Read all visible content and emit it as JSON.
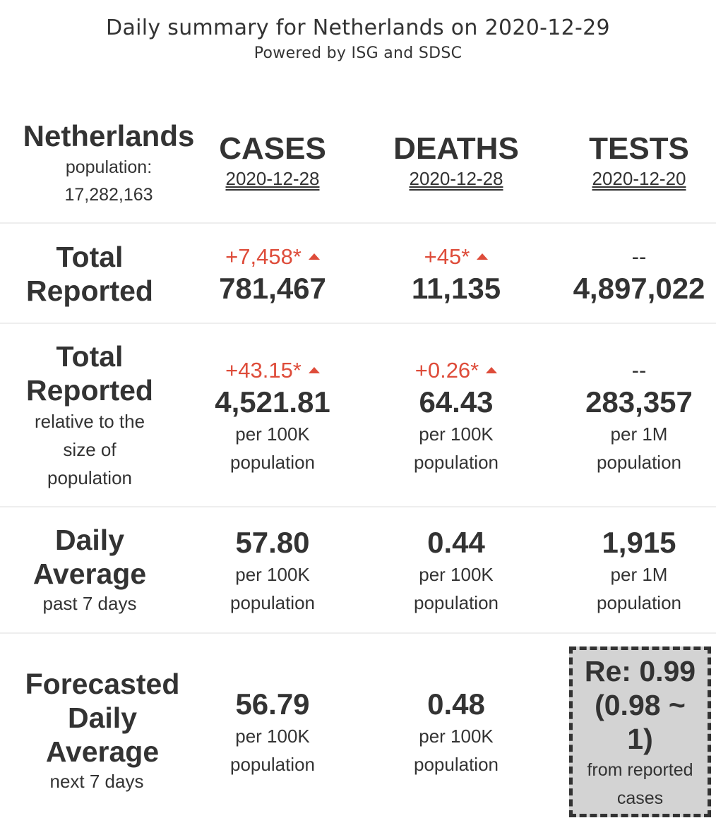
{
  "header": {
    "title": "Daily summary for Netherlands on 2020-12-29",
    "subtitle": "Powered by ISG and SDSC"
  },
  "country": {
    "name": "Netherlands",
    "population_label": "population:",
    "population_value": "17,282,163"
  },
  "columns": {
    "cases": {
      "label": "CASES",
      "date": "2020-12-28"
    },
    "deaths": {
      "label": "DEATHS",
      "date": "2020-12-28"
    },
    "tests": {
      "label": "TESTS",
      "date": "2020-12-20"
    }
  },
  "rows": {
    "total": {
      "label_line1": "Total",
      "label_line2": "Reported",
      "cases": {
        "delta": "+7,458*",
        "value": "781,467"
      },
      "deaths": {
        "delta": "+45*",
        "value": "11,135"
      },
      "tests": {
        "delta": "--",
        "value": "4,897,022"
      }
    },
    "relative": {
      "label_line1": "Total",
      "label_line2": "Reported",
      "sub_line1": "relative to the",
      "sub_line2": "size of",
      "sub_line3": "population",
      "cases": {
        "delta": "+43.15*",
        "value": "4,521.81",
        "unit1": "per 100K",
        "unit2": "population"
      },
      "deaths": {
        "delta": "+0.26*",
        "value": "64.43",
        "unit1": "per 100K",
        "unit2": "population"
      },
      "tests": {
        "delta": "--",
        "value": "283,357",
        "unit1": "per 1M",
        "unit2": "population"
      }
    },
    "daily": {
      "label_line1": "Daily",
      "label_line2": "Average",
      "sub": "past 7 days",
      "cases": {
        "value": "57.80",
        "unit1": "per 100K",
        "unit2": "population"
      },
      "deaths": {
        "value": "0.44",
        "unit1": "per 100K",
        "unit2": "population"
      },
      "tests": {
        "value": "1,915",
        "unit1": "per 1M",
        "unit2": "population"
      }
    },
    "forecast": {
      "label_line1": "Forecasted",
      "label_line2": "Daily",
      "label_line3": "Average",
      "sub": "next 7 days",
      "cases": {
        "value": "56.79",
        "unit1": "per 100K",
        "unit2": "population"
      },
      "deaths": {
        "value": "0.48",
        "unit1": "per 100K",
        "unit2": "population"
      },
      "re": {
        "line1": "Re: 0.99",
        "line2": "(0.98 ~",
        "line3": "1)",
        "sub1": "from reported",
        "sub2": "cases"
      }
    }
  },
  "colors": {
    "increase": "#de4c3a",
    "text": "#333333",
    "divider": "#eeeeee",
    "re_box_bg": "#d3d3d3"
  }
}
